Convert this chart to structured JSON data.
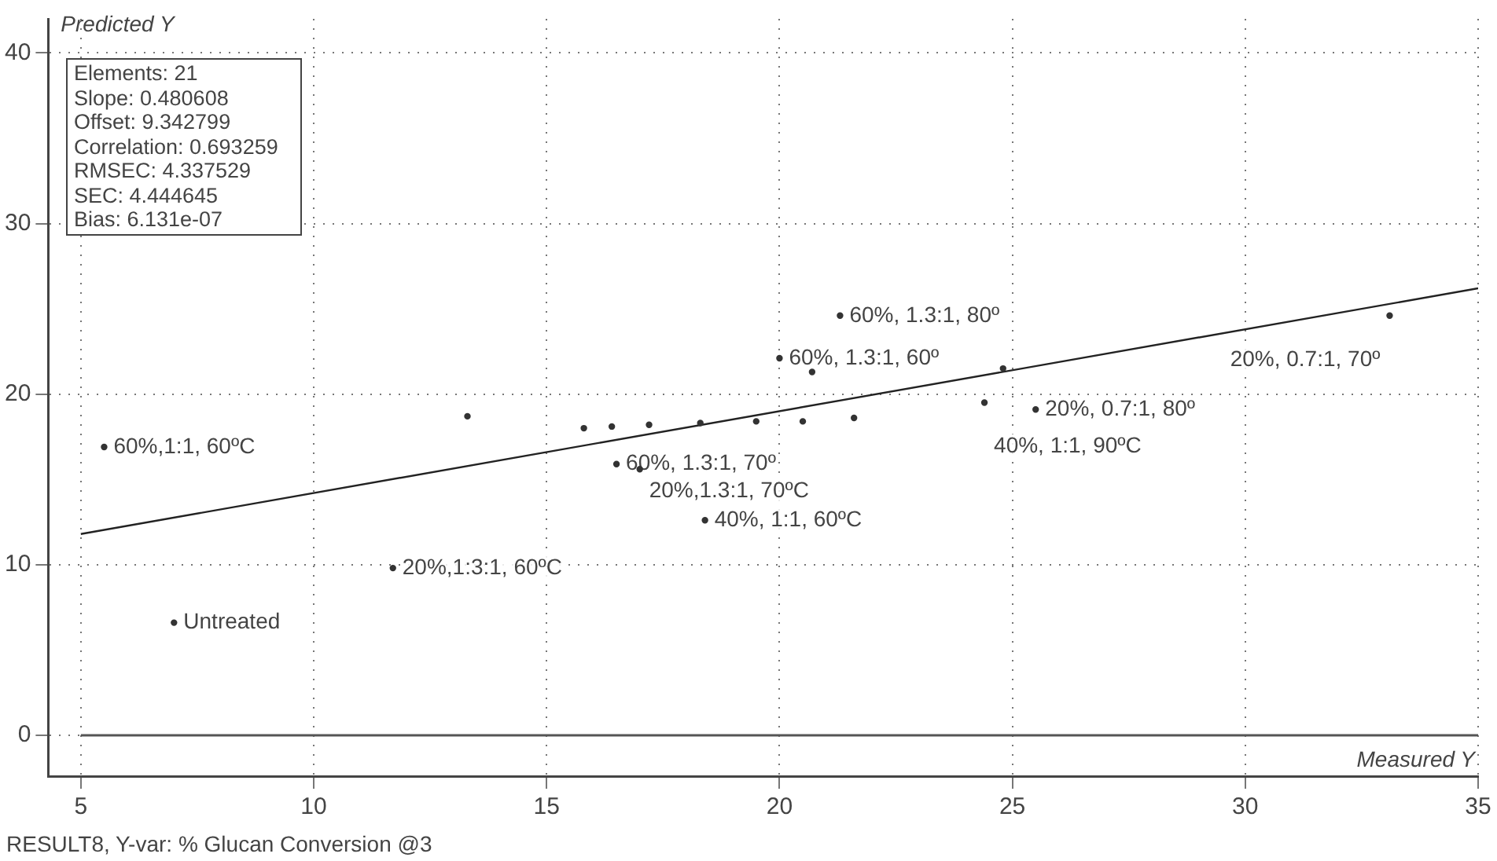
{
  "chart_data": {
    "type": "scatter",
    "xlabel": "Measured Y",
    "ylabel": "Predicted Y",
    "xlim": [
      4.3,
      35
    ],
    "xticks": [
      5,
      10,
      15,
      20,
      25,
      30,
      35
    ],
    "ylim": [
      -2.4,
      42
    ],
    "yticks": [
      0,
      10,
      20,
      30,
      40
    ],
    "grid": true,
    "legend": false,
    "series": [
      {
        "marker": "circle",
        "color": "#333333",
        "x": [
          7.0,
          5.5,
          11.7,
          13.3,
          16.5,
          17.0,
          18.4,
          21.3,
          20.0,
          20.7,
          24.8,
          33.1,
          24.4,
          25.5,
          21.6,
          15.8,
          16.4,
          17.2,
          18.3,
          19.5,
          20.5
        ],
        "values": [
          6.6,
          16.9,
          9.8,
          18.7,
          15.9,
          15.6,
          12.6,
          24.6,
          22.1,
          21.3,
          21.5,
          24.6,
          19.5,
          19.1,
          18.6,
          18.0,
          18.1,
          18.2,
          18.3,
          18.4,
          18.4
        ]
      },
      {
        "type": "line",
        "marker": "none",
        "color": "#222222",
        "x": [
          5,
          35
        ],
        "values": [
          11.8,
          26.2
        ]
      }
    ],
    "ref_lines": [
      {
        "axis": "y",
        "value": 0,
        "color": "#555555"
      }
    ],
    "annotations": [
      {
        "text": "Untreated",
        "x": 7.0,
        "y": 6.6
      },
      {
        "text": "60%,1:1, 60ºC",
        "x": 5.5,
        "y": 16.9
      },
      {
        "text": "20%,1:3:1, 60ºC",
        "x": 11.7,
        "y": 9.8
      },
      {
        "text": "60%, 1.3:1, 70º",
        "x": 16.5,
        "y": 15.9
      },
      {
        "text": "20%,1.3:1, 70ºC",
        "x": 17.0,
        "y": 15.6
      },
      {
        "text": "40%, 1:1, 60ºC",
        "x": 18.4,
        "y": 12.6
      },
      {
        "text": "60%, 1.3:1, 80º",
        "x": 21.3,
        "y": 24.6
      },
      {
        "text": "60%, 1.3:1, 60º",
        "x": 20.0,
        "y": 22.1
      },
      {
        "text": "20%, 0.7:1, 70º",
        "x": 33.1,
        "y": 24.6
      },
      {
        "text": "40%, 1:1, 90ºC",
        "x": 24.4,
        "y": 19.5
      },
      {
        "text": "20%, 0.7:1, 80º",
        "x": 25.5,
        "y": 19.1
      },
      "Elements: 21",
      "Slope: 0.480608",
      "Offset: 9.342799",
      "Correlation: 0.693259",
      "RMSEC: 4.337529",
      "SEC: 4.444645",
      "Bias: 6.131e-07",
      "RESULT8, Y-var: % Glucan Conversion @3"
    ]
  }
}
